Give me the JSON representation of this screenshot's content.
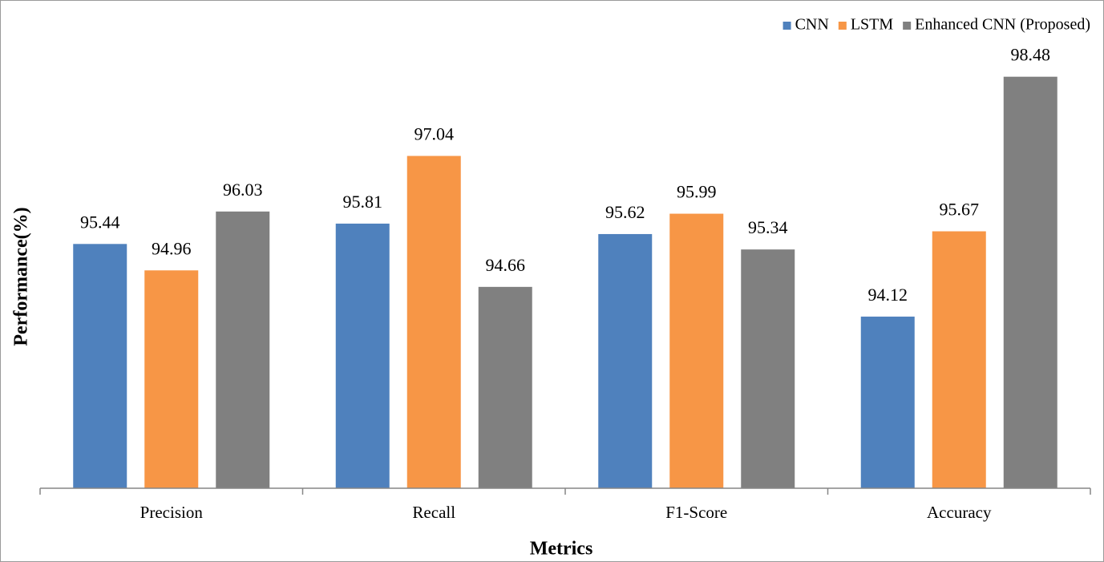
{
  "chart_data": {
    "type": "bar",
    "x_label": "Metrics",
    "y_label": "Performance(%)",
    "categories": [
      "Precision",
      "Recall",
      "F1-Score",
      "Accuracy"
    ],
    "series": [
      {
        "name": "CNN",
        "color": "#4f81bd",
        "values": [
          95.44,
          95.81,
          95.62,
          94.12
        ]
      },
      {
        "name": "LSTM",
        "color": "#f79646",
        "values": [
          94.96,
          97.04,
          95.99,
          95.67
        ]
      },
      {
        "name": "Enhanced CNN (Proposed)",
        "color": "#808080",
        "values": [
          96.03,
          94.66,
          95.34,
          98.48
        ]
      }
    ],
    "ylim": [
      91,
      99
    ],
    "legend": "top-right",
    "grid": false
  }
}
